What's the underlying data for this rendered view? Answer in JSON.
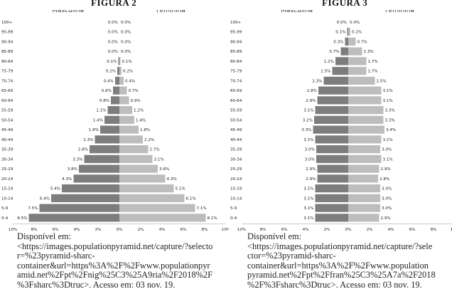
{
  "figures": [
    {
      "label": "FIGURA 2",
      "source_lines": [
        "Disponível em:",
        "<https://images.populationpyramid.net/capture/?selecto",
        "r=%23pyramid-sharc-",
        "container&url=https%3A%2F%2Fwww.populationpyr",
        "amid.net%2Fpt%2Fnig%25C3%25A9ria%2F2018%2F",
        "%3Fsharc%3Dtruc>. Acesso em: 03 nov. 19."
      ]
    },
    {
      "label": "FIGURA 3",
      "source_lines": [
        "Disponível em:",
        "<https://images.populationpyramid.net/capture/?sele",
        "ctor=%23pyramid-sharc-",
        "container&url=https%3A%2F%2Fwww.population",
        "pyramid.net%2Fpt%2Ffran%25C3%25A7a%2F2018",
        "%2F%3Fsharc%3Dtruc>. Acesso em: 03 nov. 19."
      ]
    }
  ],
  "chart_data": [
    {
      "type": "bar",
      "orientation": "horizontal-pyramid",
      "title": "FIGURA 2",
      "categories": [
        "100+",
        "95-99",
        "90-94",
        "85-89",
        "80-84",
        "75-79",
        "70-74",
        "65-69",
        "60-64",
        "55-59",
        "50-54",
        "45-49",
        "40-44",
        "35-39",
        "30-34",
        "25-29",
        "20-24",
        "15-19",
        "10-14",
        "5-9",
        "0-4"
      ],
      "series": [
        {
          "name": "Masculina",
          "values": [
            0.0,
            0.0,
            0.0,
            0.0,
            0.1,
            0.2,
            0.4,
            0.6,
            0.8,
            1.1,
            1.4,
            1.8,
            2.3,
            2.8,
            3.3,
            3.8,
            4.3,
            5.4,
            6.4,
            7.5,
            8.5
          ],
          "labels": [
            "0.0%",
            "0.0%",
            "0.0%",
            "0.0%",
            "0.1%",
            "0.2%",
            "0.4%",
            "0.6%",
            "0.8%",
            "1.1%",
            "1.4%",
            "1.8%",
            "2.3%",
            "2.8%",
            "3.3%",
            "3.8%",
            "4.3%",
            "5.4%",
            "6.4%",
            "7.5%",
            "8.5%"
          ]
        },
        {
          "name": "Feminina",
          "values": [
            0.0,
            0.0,
            0.0,
            0.0,
            0.1,
            0.2,
            0.4,
            0.7,
            0.9,
            1.2,
            1.4,
            1.8,
            2.2,
            2.7,
            3.1,
            3.6,
            4.3,
            5.1,
            6.1,
            7.1,
            8.1
          ],
          "labels": [
            "0.0%",
            "0.0%",
            "0.0%",
            "0.0%",
            "0.1%",
            "0.2%",
            "0.4%",
            "0.7%",
            "0.9%",
            "1.2%",
            "1.4%",
            "1.8%",
            "2.2%",
            "2.7%",
            "3.1%",
            "3.6%",
            "4.3%",
            "5.1%",
            "6.1%",
            "7.1%",
            "8.1%"
          ]
        }
      ],
      "x_ticks": [
        "10%",
        "8%",
        "6%",
        "4%",
        "2%",
        "0%",
        "2%",
        "4%",
        "6%",
        "8%",
        "10%"
      ],
      "xlim": [
        -10,
        10
      ],
      "grid": false,
      "legend": "top",
      "colors": {
        "male": "#7d7d7d",
        "female": "#bdbdbd"
      }
    },
    {
      "type": "bar",
      "orientation": "horizontal-pyramid",
      "title": "FIGURA 3",
      "categories": [
        "100+",
        "95-99",
        "90-94",
        "85-89",
        "80-84",
        "75-79",
        "70-74",
        "65-69",
        "60-64",
        "55-59",
        "50-54",
        "45-49",
        "40-44",
        "35-39",
        "30-34",
        "25-29",
        "20-24",
        "15-19",
        "10-14",
        "5-9",
        "0-4"
      ],
      "series": [
        {
          "name": "Masculina",
          "values": [
            0.0,
            0.1,
            0.3,
            0.7,
            1.2,
            1.5,
            2.3,
            2.8,
            2.9,
            3.1,
            3.2,
            3.3,
            3.1,
            3.0,
            3.0,
            2.9,
            2.9,
            3.1,
            3.1,
            3.1,
            3.1
          ],
          "labels": [
            "0.0%",
            "0.1%",
            "0.3%",
            "0.7%",
            "1.2%",
            "1.5%",
            "2.3%",
            "2.8%",
            "2.9%",
            "3.1%",
            "3.2%",
            "3.3%",
            "3.1%",
            "3.0%",
            "3.0%",
            "2.9%",
            "2.9%",
            "3.1%",
            "3.1%",
            "3.1%",
            "3.1%"
          ]
        },
        {
          "name": "Feminina",
          "values": [
            0.0,
            0.2,
            0.7,
            1.3,
            1.7,
            1.7,
            2.5,
            3.1,
            3.1,
            3.3,
            3.3,
            3.4,
            3.1,
            3.0,
            3.1,
            2.9,
            2.8,
            3.0,
            3.0,
            3.0,
            2.9
          ],
          "labels": [
            "0.0%",
            "0.2%",
            "0.7%",
            "1.3%",
            "1.7%",
            "1.7%",
            "2.5%",
            "3.1%",
            "3.1%",
            "3.3%",
            "3.3%",
            "3.4%",
            "3.1%",
            "3.0%",
            "3.1%",
            "2.9%",
            "2.8%",
            "3.0%",
            "3.0%",
            "3.0%",
            "2.9%"
          ]
        }
      ],
      "x_ticks": [
        "10%",
        "8%",
        "6%",
        "4%",
        "2%",
        "0%",
        "2%",
        "4%",
        "6%",
        "8%",
        "10%"
      ],
      "xlim": [
        -10,
        10
      ],
      "grid": false,
      "legend": "top",
      "colors": {
        "male": "#7d7d7d",
        "female": "#bdbdbd"
      }
    }
  ]
}
